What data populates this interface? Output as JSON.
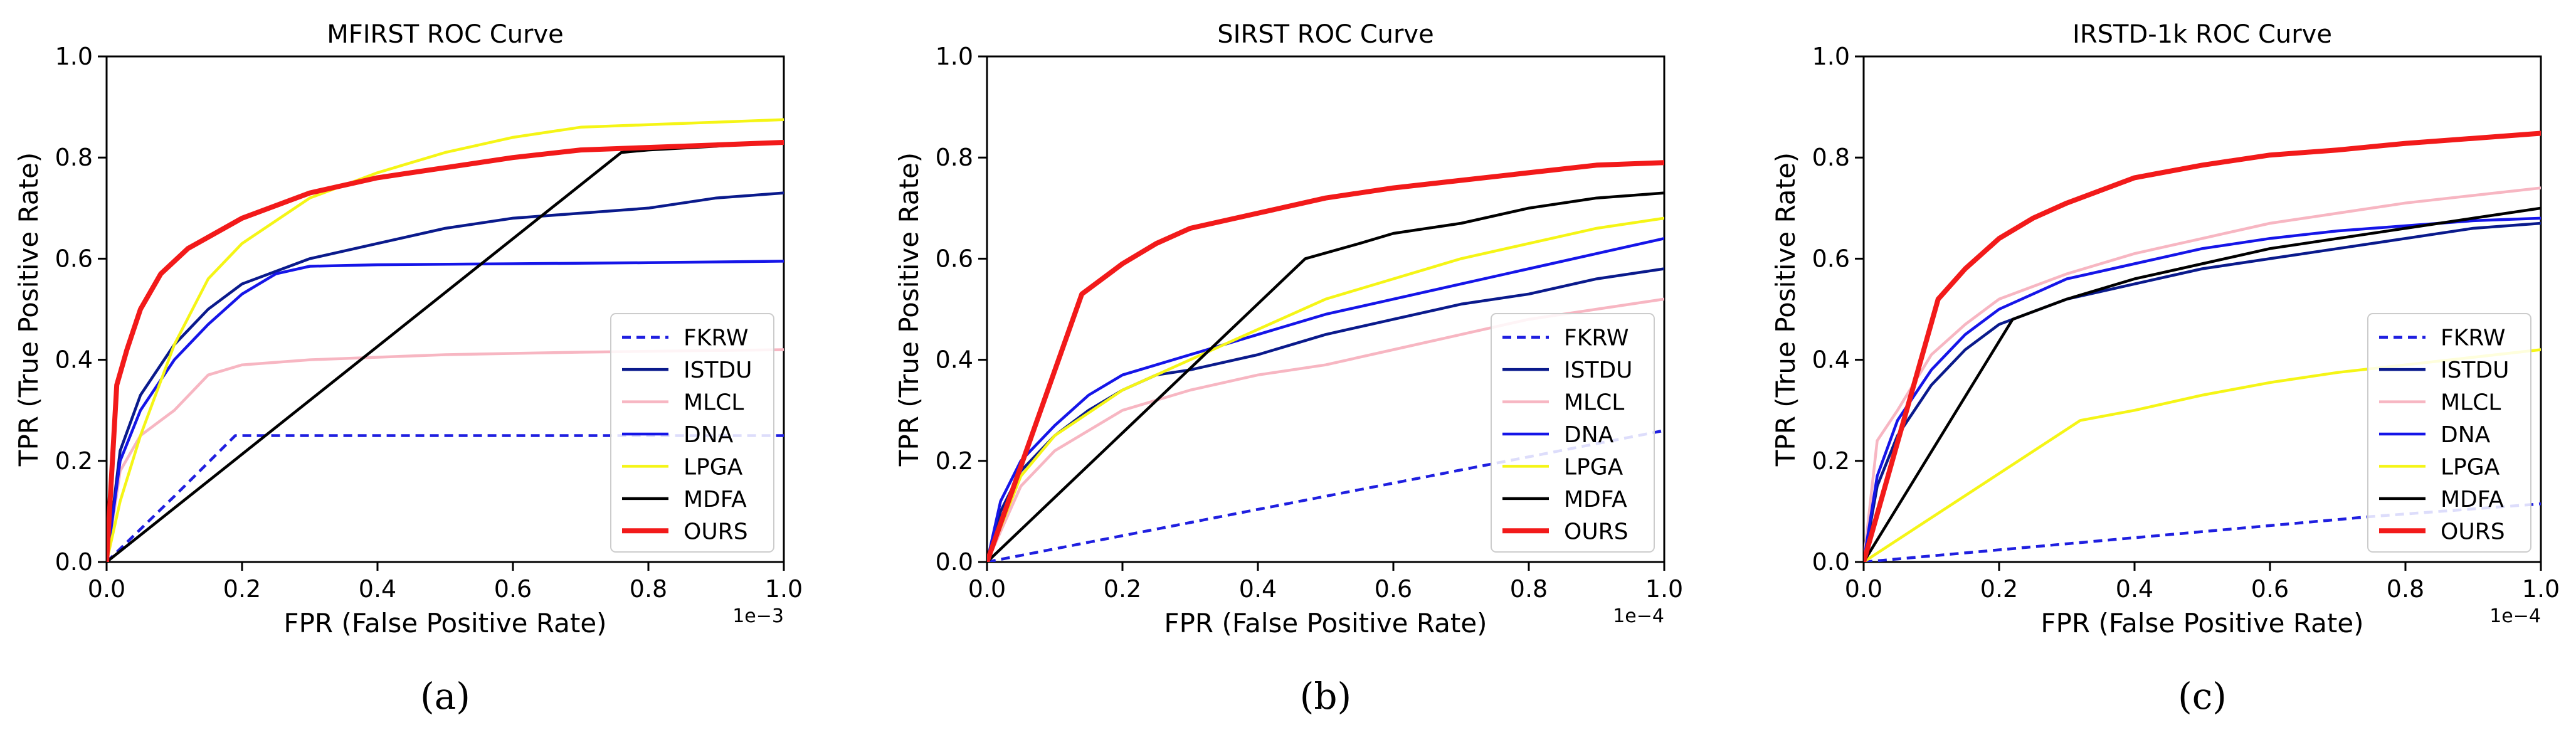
{
  "colors": {
    "FKRW": "#1f1fe0",
    "ISTDU": "#0a1a8c",
    "MLCL": "#f7b6c2",
    "DNA": "#1515e8",
    "LPGA": "#f5f516",
    "MDFA": "#000000",
    "OURS": "#f21a1a"
  },
  "chart_data": [
    {
      "type": "line",
      "title": "MFIRST ROC Curve",
      "xlabel": "FPR (False Positive Rate)",
      "ylabel": "TPR (True Positive Rate)",
      "x_exponent": "1e−3",
      "xlim": [
        0,
        1
      ],
      "ylim": [
        0,
        1
      ],
      "xticks": [
        0,
        0.2,
        0.4,
        0.6,
        0.8,
        1
      ],
      "xtick_labels": [
        "0.0",
        "0.2",
        "0.4",
        "0.6",
        "0.8",
        "1.0"
      ],
      "yticks": [
        0,
        0.2,
        0.4,
        0.6,
        0.8,
        1
      ],
      "ytick_labels": [
        "0.0",
        "0.2",
        "0.4",
        "0.6",
        "0.8",
        "1.0"
      ],
      "legend_position": "lower-right",
      "caption": "(a)",
      "series": [
        {
          "name": "FKRW",
          "style": "dashed",
          "x": [
            0,
            0.1,
            0.19,
            0.3,
            0.5,
            0.7,
            1.0
          ],
          "y": [
            0,
            0.13,
            0.25,
            0.25,
            0.25,
            0.25,
            0.25
          ]
        },
        {
          "name": "ISTDU",
          "style": "solid",
          "x": [
            0,
            0.02,
            0.05,
            0.1,
            0.15,
            0.2,
            0.3,
            0.4,
            0.5,
            0.6,
            0.7,
            0.8,
            0.9,
            1.0
          ],
          "y": [
            0,
            0.22,
            0.33,
            0.43,
            0.5,
            0.55,
            0.6,
            0.63,
            0.66,
            0.68,
            0.69,
            0.7,
            0.72,
            0.73
          ]
        },
        {
          "name": "MLCL",
          "style": "solid",
          "x": [
            0,
            0.02,
            0.05,
            0.1,
            0.15,
            0.2,
            0.3,
            0.5,
            0.7,
            1.0
          ],
          "y": [
            0,
            0.18,
            0.25,
            0.3,
            0.37,
            0.39,
            0.4,
            0.41,
            0.415,
            0.42
          ]
        },
        {
          "name": "DNA",
          "style": "solid",
          "x": [
            0,
            0.02,
            0.05,
            0.1,
            0.15,
            0.2,
            0.25,
            0.3,
            0.4,
            0.6,
            0.8,
            1.0
          ],
          "y": [
            0,
            0.2,
            0.3,
            0.4,
            0.47,
            0.53,
            0.57,
            0.585,
            0.588,
            0.59,
            0.592,
            0.595
          ]
        },
        {
          "name": "LPGA",
          "style": "solid",
          "x": [
            0,
            0.02,
            0.05,
            0.1,
            0.15,
            0.2,
            0.3,
            0.4,
            0.5,
            0.6,
            0.7,
            0.8,
            1.0
          ],
          "y": [
            0,
            0.12,
            0.25,
            0.43,
            0.56,
            0.63,
            0.72,
            0.77,
            0.81,
            0.84,
            0.86,
            0.865,
            0.875
          ]
        },
        {
          "name": "MDFA",
          "style": "solid",
          "x": [
            0,
            0.76,
            0.8,
            1.0
          ],
          "y": [
            0,
            0.81,
            0.815,
            0.83
          ]
        },
        {
          "name": "OURS",
          "style": "solid",
          "x": [
            0,
            0.015,
            0.03,
            0.05,
            0.08,
            0.12,
            0.2,
            0.3,
            0.4,
            0.5,
            0.6,
            0.7,
            0.8,
            0.9,
            1.0
          ],
          "y": [
            0,
            0.35,
            0.42,
            0.5,
            0.57,
            0.62,
            0.68,
            0.73,
            0.76,
            0.78,
            0.8,
            0.815,
            0.82,
            0.825,
            0.83
          ]
        }
      ]
    },
    {
      "type": "line",
      "title": "SIRST ROC Curve",
      "xlabel": "FPR (False Positive Rate)",
      "ylabel": "TPR (True Positive Rate)",
      "x_exponent": "1e−4",
      "xlim": [
        0,
        1
      ],
      "ylim": [
        0,
        1
      ],
      "xticks": [
        0,
        0.2,
        0.4,
        0.6,
        0.8,
        1
      ],
      "xtick_labels": [
        "0.0",
        "0.2",
        "0.4",
        "0.6",
        "0.8",
        "1.0"
      ],
      "yticks": [
        0,
        0.2,
        0.4,
        0.6,
        0.8,
        1
      ],
      "ytick_labels": [
        "0.0",
        "0.2",
        "0.4",
        "0.6",
        "0.8",
        "1.0"
      ],
      "legend_position": "lower-right",
      "caption": "(b)",
      "series": [
        {
          "name": "FKRW",
          "style": "dashed",
          "x": [
            0,
            0.25,
            0.5,
            0.75,
            1.0
          ],
          "y": [
            0,
            0.065,
            0.13,
            0.195,
            0.26
          ]
        },
        {
          "name": "ISTDU",
          "style": "solid",
          "x": [
            0,
            0.02,
            0.05,
            0.1,
            0.15,
            0.2,
            0.25,
            0.3,
            0.4,
            0.5,
            0.6,
            0.7,
            0.8,
            0.9,
            1.0
          ],
          "y": [
            0,
            0.1,
            0.18,
            0.25,
            0.3,
            0.34,
            0.37,
            0.38,
            0.41,
            0.45,
            0.48,
            0.51,
            0.53,
            0.56,
            0.58
          ]
        },
        {
          "name": "MLCL",
          "style": "solid",
          "x": [
            0,
            0.05,
            0.1,
            0.2,
            0.3,
            0.4,
            0.5,
            0.6,
            0.7,
            0.8,
            0.9,
            1.0
          ],
          "y": [
            0,
            0.15,
            0.22,
            0.3,
            0.34,
            0.37,
            0.39,
            0.42,
            0.45,
            0.48,
            0.5,
            0.52
          ]
        },
        {
          "name": "DNA",
          "style": "solid",
          "x": [
            0,
            0.02,
            0.05,
            0.1,
            0.15,
            0.2,
            0.3,
            0.4,
            0.5,
            0.6,
            0.7,
            0.8,
            0.9,
            1.0
          ],
          "y": [
            0,
            0.12,
            0.2,
            0.27,
            0.33,
            0.37,
            0.41,
            0.45,
            0.49,
            0.52,
            0.55,
            0.58,
            0.61,
            0.64
          ]
        },
        {
          "name": "LPGA",
          "style": "solid",
          "x": [
            0,
            0.05,
            0.1,
            0.2,
            0.3,
            0.4,
            0.5,
            0.6,
            0.7,
            0.8,
            0.9,
            1.0
          ],
          "y": [
            0,
            0.17,
            0.25,
            0.34,
            0.4,
            0.46,
            0.52,
            0.56,
            0.6,
            0.63,
            0.66,
            0.68
          ]
        },
        {
          "name": "MDFA",
          "style": "solid",
          "x": [
            0,
            0.47,
            0.55,
            0.6,
            0.7,
            0.8,
            0.9,
            1.0
          ],
          "y": [
            0,
            0.6,
            0.63,
            0.65,
            0.67,
            0.7,
            0.72,
            0.73
          ]
        },
        {
          "name": "OURS",
          "style": "solid",
          "x": [
            0,
            0.14,
            0.2,
            0.25,
            0.3,
            0.4,
            0.5,
            0.6,
            0.7,
            0.8,
            0.9,
            1.0
          ],
          "y": [
            0,
            0.53,
            0.59,
            0.63,
            0.66,
            0.69,
            0.72,
            0.74,
            0.755,
            0.77,
            0.785,
            0.79
          ]
        }
      ]
    },
    {
      "type": "line",
      "title": "IRSTD-1k ROC Curve",
      "xlabel": "FPR (False Positive Rate)",
      "ylabel": "TPR (True Positive Rate)",
      "x_exponent": "1e−4",
      "xlim": [
        0,
        1
      ],
      "ylim": [
        0,
        1
      ],
      "xticks": [
        0,
        0.2,
        0.4,
        0.6,
        0.8,
        1
      ],
      "xtick_labels": [
        "0.0",
        "0.2",
        "0.4",
        "0.6",
        "0.8",
        "1.0"
      ],
      "yticks": [
        0,
        0.2,
        0.4,
        0.6,
        0.8,
        1
      ],
      "ytick_labels": [
        "0.0",
        "0.2",
        "0.4",
        "0.6",
        "0.8",
        "1.0"
      ],
      "legend_position": "lower-right",
      "caption": "(c)",
      "series": [
        {
          "name": "FKRW",
          "style": "dashed",
          "x": [
            0,
            0.25,
            0.5,
            0.75,
            1.0
          ],
          "y": [
            0,
            0.03,
            0.06,
            0.09,
            0.115
          ]
        },
        {
          "name": "ISTDU",
          "style": "solid",
          "x": [
            0,
            0.02,
            0.05,
            0.1,
            0.15,
            0.2,
            0.3,
            0.4,
            0.5,
            0.6,
            0.7,
            0.8,
            0.9,
            1.0
          ],
          "y": [
            0,
            0.15,
            0.25,
            0.35,
            0.42,
            0.47,
            0.52,
            0.55,
            0.58,
            0.6,
            0.62,
            0.64,
            0.66,
            0.67
          ]
        },
        {
          "name": "MLCL",
          "style": "solid",
          "x": [
            0,
            0.02,
            0.05,
            0.1,
            0.15,
            0.2,
            0.3,
            0.4,
            0.5,
            0.6,
            0.7,
            0.8,
            0.9,
            1.0
          ],
          "y": [
            0,
            0.24,
            0.3,
            0.41,
            0.47,
            0.52,
            0.57,
            0.61,
            0.64,
            0.67,
            0.69,
            0.71,
            0.725,
            0.74
          ]
        },
        {
          "name": "DNA",
          "style": "solid",
          "x": [
            0,
            0.02,
            0.05,
            0.1,
            0.15,
            0.2,
            0.3,
            0.4,
            0.5,
            0.6,
            0.7,
            0.8,
            0.9,
            1.0
          ],
          "y": [
            0,
            0.17,
            0.28,
            0.38,
            0.45,
            0.5,
            0.56,
            0.59,
            0.62,
            0.64,
            0.655,
            0.665,
            0.675,
            0.68
          ]
        },
        {
          "name": "LPGA",
          "style": "solid",
          "x": [
            0,
            0.32,
            0.4,
            0.5,
            0.6,
            0.7,
            0.8,
            0.9,
            1.0
          ],
          "y": [
            0,
            0.28,
            0.3,
            0.33,
            0.355,
            0.375,
            0.39,
            0.405,
            0.42
          ]
        },
        {
          "name": "MDFA",
          "style": "solid",
          "x": [
            0,
            0.22,
            0.3,
            0.4,
            0.5,
            0.6,
            0.7,
            0.8,
            0.9,
            1.0
          ],
          "y": [
            0,
            0.48,
            0.52,
            0.56,
            0.59,
            0.62,
            0.64,
            0.66,
            0.68,
            0.7
          ]
        },
        {
          "name": "OURS",
          "style": "solid",
          "x": [
            0,
            0.11,
            0.15,
            0.2,
            0.25,
            0.3,
            0.4,
            0.5,
            0.6,
            0.7,
            0.8,
            0.9,
            1.0
          ],
          "y": [
            0,
            0.52,
            0.58,
            0.64,
            0.68,
            0.71,
            0.76,
            0.785,
            0.805,
            0.815,
            0.828,
            0.838,
            0.848
          ]
        }
      ]
    }
  ]
}
